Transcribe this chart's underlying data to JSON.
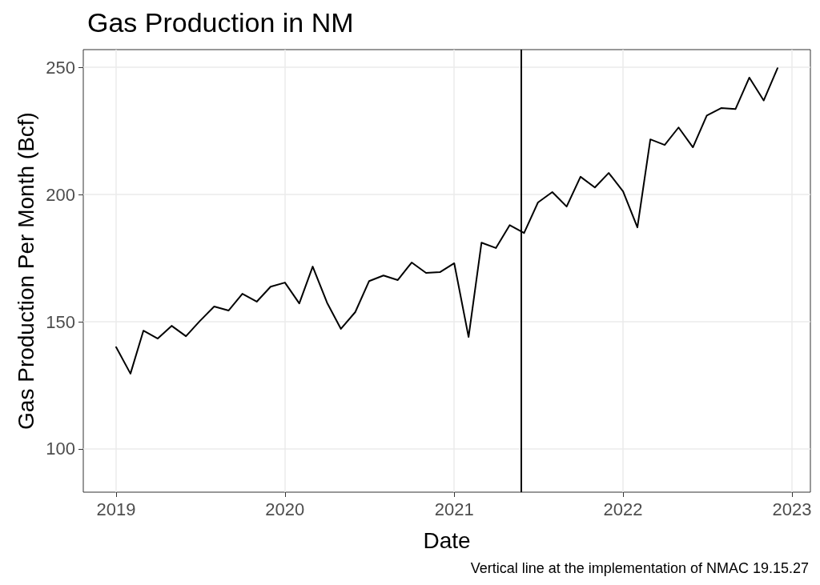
{
  "chart_data": {
    "type": "line",
    "title": "Gas Production in NM",
    "xlabel": "Date",
    "ylabel": "Gas Production Per Month (Bcf)",
    "annotations": [
      "Vertical line at the implementation of NMAC 19.15.27"
    ],
    "x": [
      "2019-01",
      "2019-02",
      "2019-03",
      "2019-04",
      "2019-05",
      "2019-06",
      "2019-07",
      "2019-08",
      "2019-09",
      "2019-10",
      "2019-11",
      "2019-12",
      "2020-01",
      "2020-02",
      "2020-03",
      "2020-04",
      "2020-05",
      "2020-06",
      "2020-07",
      "2020-08",
      "2020-09",
      "2020-10",
      "2020-11",
      "2020-12",
      "2021-01",
      "2021-02",
      "2021-03",
      "2021-04",
      "2021-05",
      "2021-06",
      "2021-07",
      "2021-08",
      "2021-09",
      "2021-10",
      "2021-11",
      "2021-12",
      "2022-01",
      "2022-02",
      "2022-03",
      "2022-04",
      "2022-05",
      "2022-06",
      "2022-07",
      "2022-08",
      "2022-09",
      "2022-10",
      "2022-11",
      "2022-12"
    ],
    "series": [
      {
        "color": "#000000",
        "values": [
          140,
          129.6,
          146.5,
          143.4,
          148.4,
          144.3,
          150.3,
          156,
          154.4,
          161,
          157.9,
          163.8,
          165.4,
          157.2,
          171.7,
          157.5,
          147.2,
          153.8,
          166,
          168.2,
          166.4,
          173.3,
          169.2,
          169.5,
          173,
          144,
          181.1,
          179,
          188,
          184.9,
          196.9,
          201,
          195.3,
          207,
          202.8,
          208.5,
          201.3,
          187.1,
          221.7,
          219.5,
          226.4,
          218.6,
          231.1,
          234,
          233.6,
          246,
          237,
          249.7
        ]
      }
    ],
    "xlim": [
      "2018-10-22",
      "2023-02-10"
    ],
    "xticks": [
      "2019",
      "2020",
      "2021",
      "2022",
      "2023"
    ],
    "ylim": [
      83,
      257
    ],
    "yticks": [
      100,
      150,
      200,
      250
    ],
    "ref_lines": [
      {
        "axis": "x",
        "value": "2021-05-25",
        "color": "#000000",
        "line_style": "solid"
      }
    ],
    "grid": true,
    "marker": "none",
    "line_style": "solid"
  }
}
